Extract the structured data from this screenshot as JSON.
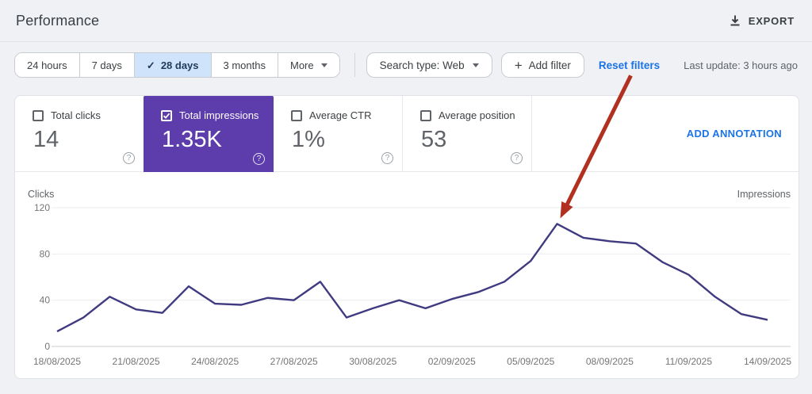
{
  "header": {
    "title": "Performance",
    "export_label": "EXPORT"
  },
  "filters": {
    "ranges": [
      "24 hours",
      "7 days",
      "28 days",
      "3 months",
      "More"
    ],
    "selected_range": "28 days",
    "search_type": "Search type: Web",
    "add_filter": "Add filter",
    "reset_filters": "Reset filters",
    "last_update": "Last update: 3 hours ago"
  },
  "metrics": [
    {
      "label": "Total clicks",
      "value": "14",
      "selected": false
    },
    {
      "label": "Total impressions",
      "value": "1.35K",
      "selected": true
    },
    {
      "label": "Average CTR",
      "value": "1%",
      "selected": false
    },
    {
      "label": "Average position",
      "value": "53",
      "selected": false
    }
  ],
  "annotation_link": "ADD ANNOTATION",
  "colors": {
    "selected_tile": "#5d3cac",
    "line": "#403b80",
    "arrow": "#b23020",
    "link_blue": "#1a73e8",
    "selected_range_bg": "#cfe4fa"
  },
  "chart_data": {
    "type": "line",
    "left_axis_label": "Clicks",
    "right_axis_label": "Impressions",
    "y_ticks": [
      0,
      40,
      80,
      120
    ],
    "ylim": [
      0,
      130
    ],
    "x_tick_labels": [
      "18/08/2025",
      "21/08/2025",
      "24/08/2025",
      "27/08/2025",
      "30/08/2025",
      "02/09/2025",
      "05/09/2025",
      "08/09/2025",
      "11/09/2025",
      "14/09/2025"
    ],
    "dates": [
      "18/08/2025",
      "19/08/2025",
      "20/08/2025",
      "21/08/2025",
      "22/08/2025",
      "23/08/2025",
      "24/08/2025",
      "25/08/2025",
      "26/08/2025",
      "27/08/2025",
      "28/08/2025",
      "29/08/2025",
      "30/08/2025",
      "31/08/2025",
      "01/09/2025",
      "02/09/2025",
      "03/09/2025",
      "04/09/2025",
      "05/09/2025",
      "06/09/2025",
      "07/09/2025",
      "08/09/2025",
      "09/09/2025",
      "10/09/2025",
      "11/09/2025",
      "12/09/2025",
      "13/09/2025",
      "14/09/2025"
    ],
    "series": [
      {
        "name": "Impressions",
        "values": [
          13,
          25,
          43,
          32,
          29,
          52,
          37,
          36,
          42,
          40,
          56,
          25,
          33,
          40,
          33,
          41,
          47,
          56,
          74,
          106,
          94,
          91,
          89,
          73,
          62,
          43,
          28,
          23
        ]
      }
    ],
    "grid": true,
    "annotation_arrow": {
      "points_to_date": "06/09/2025",
      "points_to_value": 106
    }
  }
}
